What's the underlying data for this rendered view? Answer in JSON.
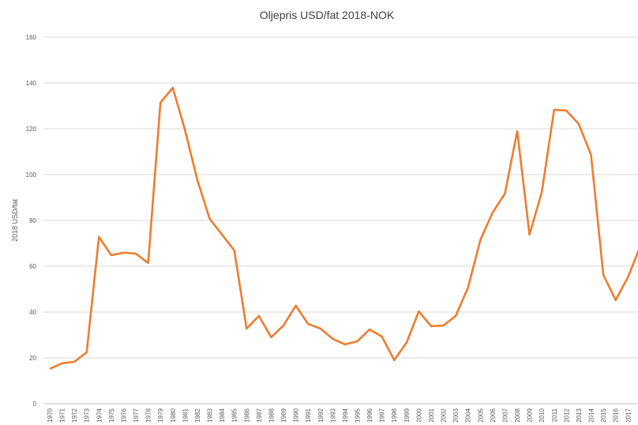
{
  "chart_data": {
    "type": "line",
    "title": "Oljepris USD/fat 2018-NOK",
    "y_label": "2018 USD/fat",
    "categories": [
      "1970",
      "1971",
      "1972",
      "1973",
      "1974",
      "1975",
      "1976",
      "1977",
      "1978",
      "1979",
      "1980",
      "1981",
      "1982",
      "1983",
      "1984",
      "1985",
      "1986",
      "1987",
      "1988",
      "1989",
      "1990",
      "1991",
      "1992",
      "1993",
      "1994",
      "1995",
      "1996",
      "1997",
      "1998",
      "1999",
      "2000",
      "2001",
      "2002",
      "2003",
      "2004",
      "2005",
      "2006",
      "2007",
      "2008",
      "2009",
      "2010",
      "2011",
      "2012",
      "2013",
      "2014",
      "2015",
      "2016",
      "2017",
      "2018"
    ],
    "series": [
      {
        "name": "Oljepris",
        "color": "#ed7d31",
        "values": [
          15.2,
          17.6,
          18.3,
          22.4,
          72.8,
          64.8,
          65.9,
          65.5,
          61.4,
          131.4,
          137.9,
          119.3,
          97.6,
          80.7,
          73.8,
          66.9,
          32.8,
          38.3,
          29,
          34.1,
          42.8,
          34.8,
          32.8,
          28.3,
          25.9,
          27.2,
          32.4,
          29.3,
          19,
          26.6,
          40.3,
          33.8,
          34.1,
          38.3,
          50.7,
          71.4,
          83.4,
          91.7,
          119,
          73.8,
          92.4,
          128.3,
          127.9,
          122.1,
          108.6,
          56.2,
          45.2,
          55.2,
          68.6
        ]
      }
    ],
    "ylim": [
      0,
      160
    ],
    "yticks": [
      0,
      20,
      40,
      60,
      80,
      100,
      120,
      140,
      160
    ],
    "grid": true
  }
}
